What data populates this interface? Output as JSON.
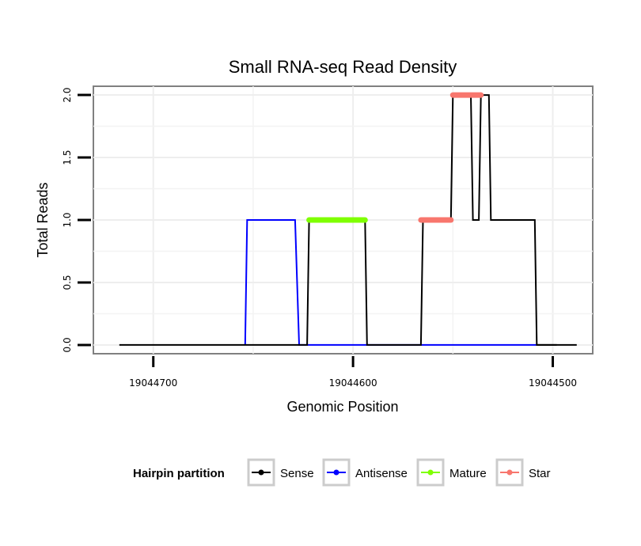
{
  "chart_data": {
    "type": "line",
    "title": "Small RNA-seq Read Density",
    "xlabel": "Genomic Position",
    "ylabel": "Total Reads",
    "x_reversed": true,
    "xlim": [
      19044730,
      19044480
    ],
    "ylim": [
      -0.07,
      2.07
    ],
    "x_ticks": [
      19044700,
      19044600,
      19044500
    ],
    "x_tick_labels": [
      "19044700",
      "19044600",
      "19044500"
    ],
    "y_ticks": [
      0,
      0.5,
      1,
      1.5,
      2
    ],
    "y_tick_labels": [
      "0.0",
      "0.5",
      "1.0",
      "1.5",
      "2.0"
    ],
    "grid": true,
    "legend": {
      "title": "Hairpin partition",
      "position": "bottom",
      "entries": [
        "Sense",
        "Antisense",
        "Mature",
        "Star"
      ]
    },
    "series": [
      {
        "name": "Sense",
        "color": "#000000",
        "x": [
          19044717,
          19044623,
          19044622,
          19044594,
          19044593,
          19044566,
          19044565,
          19044551,
          19044550,
          19044541,
          19044540,
          19044537,
          19044536,
          19044532,
          19044531,
          19044525,
          19044524,
          19044509,
          19044508,
          19044498
        ],
        "y": [
          0,
          0,
          1,
          1,
          0,
          0,
          1,
          1,
          2,
          2,
          1,
          1,
          2,
          2,
          1,
          1,
          1,
          1,
          0,
          0
        ]
      },
      {
        "name": "Antisense",
        "color": "#0000ff",
        "x": [
          19044654,
          19044653,
          19044629,
          19044627,
          19044623,
          19044508
        ],
        "y": [
          0,
          1,
          1,
          0,
          0,
          0
        ]
      },
      {
        "name": "Mature",
        "color": "#7fff00",
        "x": [
          19044622,
          19044594
        ],
        "y": [
          1,
          1
        ]
      },
      {
        "name": "Star",
        "color": "#f8766d",
        "x": [
          19044566,
          19044551
        ],
        "y": [
          1,
          1
        ],
        "segments": [
          {
            "x": [
              19044566,
              19044551
            ],
            "y": [
              1,
              1
            ]
          },
          {
            "x": [
              19044550,
              19044536
            ],
            "y": [
              2,
              2
            ]
          }
        ]
      }
    ]
  }
}
